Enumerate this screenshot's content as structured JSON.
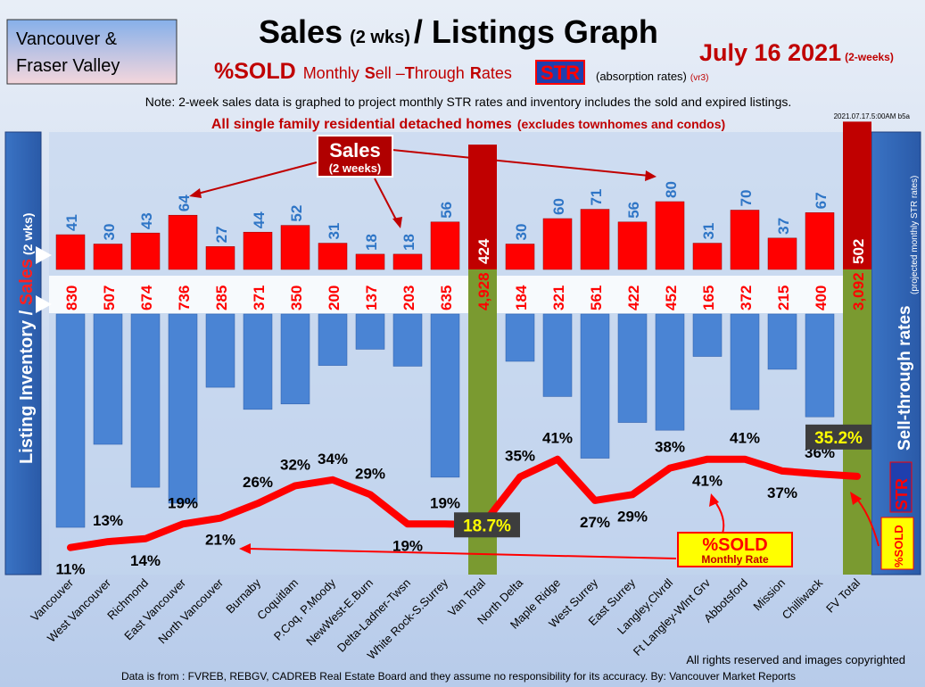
{
  "header": {
    "region": "Vancouver &",
    "region2": "Fraser Valley",
    "title_main": "Sales",
    "title_wks": "(2 wks)",
    "title_rest": "/ Listings Graph",
    "date": "July  16 2021",
    "date_note": "(2-weeks)",
    "sold_pct": "%SOLD",
    "sub_monthly": "Monthly",
    "sub_s": "S",
    "sub_ell": "ell –",
    "sub_t": "T",
    "sub_hrough": "hrough",
    "sub_r": "R",
    "sub_ates": "ates",
    "str_badge": "STR",
    "absorption": "(absorption rates)",
    "version": "(vr3)",
    "note": "Note: 2-week sales data is graphed to project monthly STR rates and inventory includes the sold and expired listings.",
    "scope_main": "All single family residential detached homes",
    "scope_paren": "(excludes townhomes and condos)",
    "stamp": "2021.07.17.5:00AM b5a"
  },
  "left_panel": {
    "part1": "Listing Inventory / ",
    "part2": "Sales",
    "part3": " (2  wks)"
  },
  "right_panel": {
    "main": "Sell-through rates",
    "sub": "(projected monthly STR rates)",
    "str": "STR",
    "sold": "%SOLD"
  },
  "callouts": {
    "sales": "Sales",
    "sales_sub": "(2 weeks)",
    "sold": "%SOLD",
    "sold_sub": "Monthly Rate"
  },
  "footer": {
    "rights": "All rights reserved and  images copyrighted",
    "source": "Data is from : FVREB, REBGV, CADREB Real Estate Board and they assume no responsibility for its accuracy. By: Vancouver Market Reports"
  },
  "colors": {
    "sales": "#ff0000",
    "inventory": "#4a84d4",
    "total_sales": "#c00000",
    "total_inventory": "#7a9a30",
    "str_line": "#ff0000",
    "value_blue": "#2e75c6",
    "value_red": "#ff0000",
    "background": "#c9daf2",
    "total_highlight": "#ffff00"
  },
  "chart_data": {
    "type": "bar",
    "categories": [
      "Vancouver",
      "West Vancouver",
      "Richmond",
      "East Vancouver",
      "North Vancouver",
      "Burnaby",
      "Coquitlam",
      "P.Coq, P.Moody",
      "NewWest-E.Burn",
      "Delta-Ladner-Twsn",
      "White Rock-S.Surrey",
      "Van Total",
      "North Delta",
      "Maple Ridge",
      "West Surrey",
      "East Surrey",
      "Langley,Clvrdl",
      "Ft Langley-Wlnt Grv",
      "Abbotsford",
      "Mission",
      "Chilliwack",
      "FV Total"
    ],
    "series": [
      {
        "name": "Sales",
        "values": [
          41,
          30,
          43,
          64,
          27,
          44,
          52,
          31,
          18,
          18,
          56,
          424,
          30,
          60,
          71,
          56,
          80,
          31,
          70,
          37,
          67,
          502
        ]
      },
      {
        "name": "Listing Inventory",
        "values": [
          830,
          507,
          674,
          736,
          285,
          371,
          350,
          200,
          137,
          203,
          635,
          4928,
          184,
          321,
          561,
          422,
          452,
          165,
          372,
          215,
          400,
          3092
        ]
      },
      {
        "name": "STR",
        "values": [
          11,
          13,
          14,
          19,
          21,
          26,
          32,
          34,
          29,
          19,
          19,
          18.7,
          35,
          41,
          27,
          29,
          38,
          41,
          41,
          37,
          36,
          35.2
        ]
      }
    ],
    "sales_labels": [
      "41",
      "30",
      "43",
      "64",
      "27",
      "44",
      "52",
      "31",
      "18",
      "18",
      "56",
      "424",
      "30",
      "60",
      "71",
      "56",
      "80",
      "31",
      "70",
      "37",
      "67",
      "502"
    ],
    "inventory_labels": [
      "830",
      "507",
      "674",
      "736",
      "285",
      "371",
      "350",
      "200",
      "137",
      "203",
      "635",
      "4,928",
      "184",
      "321",
      "561",
      "422",
      "452",
      "165",
      "372",
      "215",
      "400",
      "3,092"
    ],
    "str_labels": [
      "11%",
      "13%",
      "14%",
      "19%",
      "21%",
      "26%",
      "32%",
      "34%",
      "29%",
      "19%",
      "19%",
      "18.7%",
      "35%",
      "41%",
      "27%",
      "29%",
      "38%",
      "41%",
      "41%",
      "37%",
      "36%",
      "35.2%"
    ],
    "total_indices": [
      11,
      21
    ],
    "grid": false
  }
}
